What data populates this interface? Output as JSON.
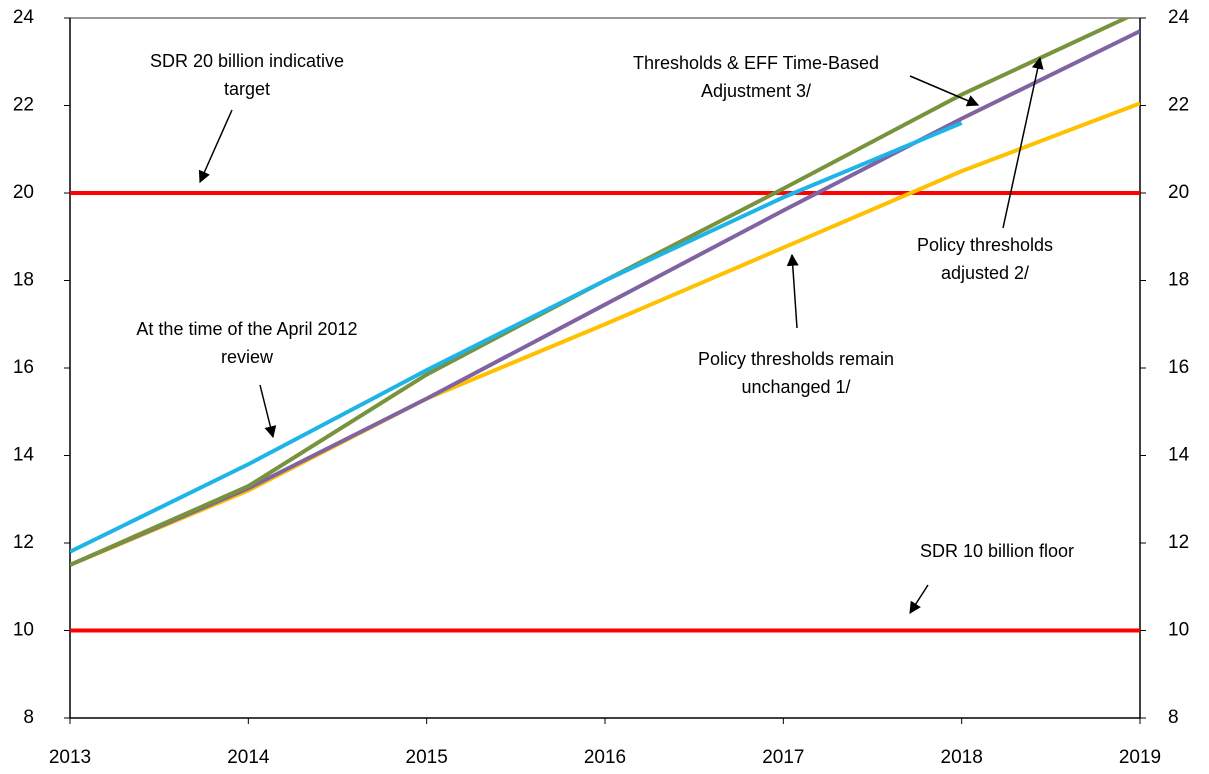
{
  "chart_data": {
    "type": "line",
    "x": [
      2013,
      2014,
      2015,
      2016,
      2017,
      2018,
      2019
    ],
    "xlim": [
      2013,
      2019
    ],
    "xticks": [
      2013,
      2014,
      2015,
      2016,
      2017,
      2018,
      2019
    ],
    "ylim": [
      8,
      24
    ],
    "yticks": [
      8,
      10,
      12,
      14,
      16,
      18,
      20,
      22,
      24
    ],
    "y2lim": [
      8,
      24
    ],
    "y2ticks": [
      8,
      10,
      12,
      14,
      16,
      18,
      20,
      22,
      24
    ],
    "series": [
      {
        "color": "#ffc000",
        "values": [
          11.5,
          13.2,
          15.3,
          17.0,
          18.75,
          20.5,
          22.05
        ]
      },
      {
        "color": "#8064a2",
        "values": [
          11.5,
          13.25,
          15.3,
          17.45,
          19.6,
          21.7,
          23.7
        ]
      },
      {
        "color": "#77933c",
        "values": [
          11.5,
          13.3,
          15.85,
          18.0,
          20.1,
          22.25,
          24.15
        ]
      },
      {
        "color": "#1eb4e8",
        "values": [
          11.8,
          13.8,
          15.95,
          18.0,
          19.9,
          21.6,
          null
        ]
      }
    ],
    "reference_lines": [
      {
        "value": 20,
        "color": "#ff0000"
      },
      {
        "value": 10,
        "color": "#ff0000"
      }
    ],
    "annotations": [
      {
        "text": [
          "SDR 20 billion indicative",
          "target"
        ]
      },
      {
        "text": [
          "At the time of the April 2012",
          "review"
        ]
      },
      {
        "text": [
          "Thresholds & EFF Time-Based",
          "Adjustment 3/"
        ]
      },
      {
        "text": [
          "Policy thresholds",
          "adjusted 2/"
        ]
      },
      {
        "text": [
          "Policy thresholds remain",
          "unchanged 1/"
        ]
      },
      {
        "text": [
          "SDR 10 billion floor"
        ]
      }
    ]
  }
}
